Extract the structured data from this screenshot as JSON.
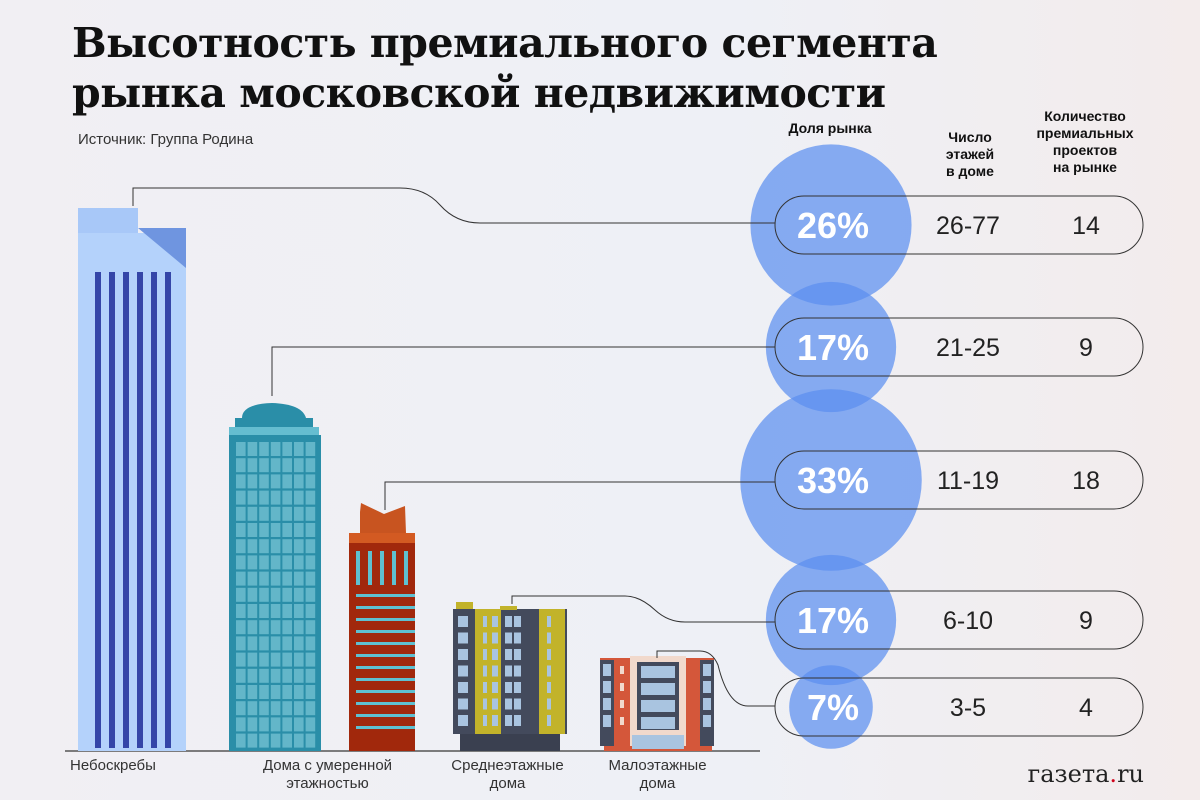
{
  "title_line1": "Высотность премиального сегмента",
  "title_line2": "рынка московской недвижимости",
  "source": "Источник: Группа Родина",
  "column_headers": {
    "share": "Доля рынка",
    "floors": [
      "Число",
      "этажей",
      "в доме"
    ],
    "projects": [
      "Количество",
      "премиальных",
      "проектов",
      "на рынке"
    ]
  },
  "categories": [
    {
      "label_lines": [
        "Небоскребы"
      ]
    },
    {
      "label_lines": [
        "Дома с умеренной",
        "этажностью"
      ]
    },
    {
      "label_lines": [
        "Среднеэтажные",
        "дома"
      ]
    },
    {
      "label_lines": [
        "Малоэтажные",
        "дома"
      ]
    }
  ],
  "chart_data": {
    "type": "bubble-table",
    "title": "Высотность премиального сегмента рынка московской недвижимости",
    "columns": [
      "Доля рынка",
      "Число этажей в доме",
      "Количество премиальных проектов на рынке"
    ],
    "rows": [
      {
        "share": 26,
        "share_label": "26%",
        "floors": "26-77",
        "projects": 14
      },
      {
        "share": 17,
        "share_label": "17%",
        "floors": "21-25",
        "projects": 9
      },
      {
        "share": 33,
        "share_label": "33%",
        "floors": "11-19",
        "projects": 18
      },
      {
        "share": 17,
        "share_label": "17%",
        "floors": "6-10",
        "projects": 9
      },
      {
        "share": 7,
        "share_label": "7%",
        "floors": "3-5",
        "projects": 4
      }
    ],
    "bubble_color": "#5b8ff0"
  },
  "logo": {
    "main": "газета",
    "dot": ".",
    "tld": "ru"
  }
}
